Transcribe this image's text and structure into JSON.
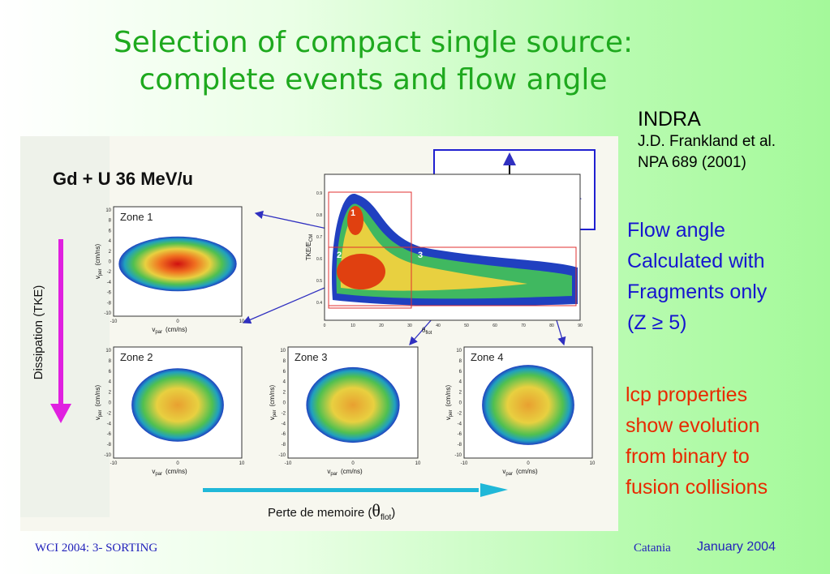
{
  "title": {
    "lines": [
      "Selection of compact single source:",
      "complete events and flow angle"
    ]
  },
  "reference": {
    "experiment": "INDRA",
    "authors": "J.D. Frankland et al.",
    "journal": "NPA 689 (2001)"
  },
  "notes": [
    {
      "lines": [
        "Flow angle",
        "Calculated with",
        "Fragments only",
        "(Z ≥ 5)"
      ]
    },
    {
      "lines": [
        "lcp properties",
        "show evolution",
        "from binary to",
        "fusion collisions"
      ]
    }
  ],
  "figure": {
    "heading": "Gd + U 36 MeV/u",
    "y_label": "Dissipation (TKE)",
    "x_label": {
      "prefix": "Perte de memoire (",
      "symbol": "θ",
      "subscript": "flot",
      "suffix": ")"
    },
    "zones": [
      "Zone 1",
      "Zone 2",
      "Zone 3",
      "Zone 4"
    ],
    "panel_axis": {
      "symbol": "v",
      "y_sub": "per",
      "x_sub": "par",
      "unit": "(cm/ns)"
    },
    "panel_yticks": [
      "10",
      "8",
      "6",
      "4",
      "2",
      "0",
      "-2",
      "-4",
      "-6",
      "-8",
      "-10"
    ],
    "panel_xticks": [
      "-10",
      "0",
      "10"
    ],
    "central": {
      "y_label": "TKE/E",
      "y_sub": "CM",
      "x_label": "θ",
      "x_sub": "flot",
      "regions": [
        "1",
        "2",
        "3"
      ],
      "yticks": [
        "0.9",
        "0.8",
        "0.7",
        "0.6",
        "0.5",
        "0.4"
      ],
      "xticks": [
        "0",
        "10",
        "20",
        "30",
        "40",
        "50",
        "60",
        "70",
        "80",
        "90"
      ]
    }
  },
  "footer": {
    "left": "WCI 2004: 3- SORTING",
    "place": "Catania",
    "date": "January 2004"
  }
}
